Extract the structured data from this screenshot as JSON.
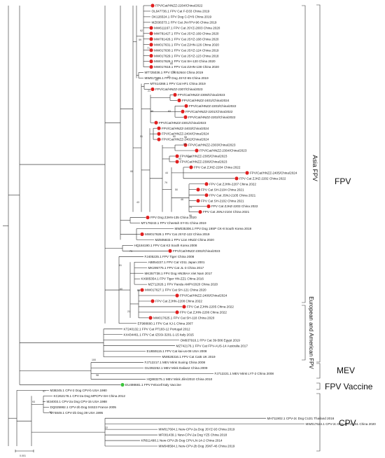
{
  "groups": {
    "fpv": "FPV",
    "asia_fpv": "Asia FPV",
    "euro_am_fpv": "European and American FPV",
    "mev": "MEV",
    "fpv_vaccine": "FPV Vaccine",
    "cpv": "CPV"
  },
  "scale_label": "0.001",
  "colors": {
    "red_marker": "#e02020",
    "green_marker": "#3cc43c",
    "line": "#1a1a1a"
  },
  "taxa": [
    {
      "label": "FPV/Cat/HNZZ-2204/China/2022",
      "mark": "red"
    },
    {
      "label": "OL647736.1 FPV Cat F-D33 China 2019",
      "mark": ""
    },
    {
      "label": "OK128324.1 FPV Dog C-DY6 China 2019",
      "mark": ""
    },
    {
      "label": "MZ836373.1 FPV Cat JN-FPV-96 China 2019",
      "mark": ""
    },
    {
      "label": "MW611167.1 FPV Cat JSYZ-2003 China 2020",
      "mark": "red"
    },
    {
      "label": "MW781427.1 FPV Cat JSYZ-169 China 2020",
      "mark": "red"
    },
    {
      "label": "MW781426.1 FPV Cat JSYZ-168 China 2020",
      "mark": "red"
    },
    {
      "label": "MW017631.1 FPV Cat ZJHN-126 China 2020",
      "mark": "red"
    },
    {
      "label": "MW017630.1 FPV Cat JSYZ-124 China 2019",
      "mark": "red"
    },
    {
      "label": "MW017629.1 FPV Cat JSYZ-123 China 2018",
      "mark": "red"
    },
    {
      "label": "MW017626.1 FPV Cat SH-120 China 2020",
      "mark": "red"
    },
    {
      "label": "MW017618.1 FPV Cat ZJHN-138 China 2020",
      "mark": "red"
    },
    {
      "label": "MT725036.1 FPV Cat BJ644 China 2019",
      "mark": ""
    },
    {
      "label": "MW017596.1 FPV Dog JSYZ-65 China 2019",
      "mark": ""
    },
    {
      "label": "MT614368.1 FPV Cat HF1 China 2019",
      "mark": ""
    },
    {
      "label": "FPV/Cat/HNZZ-2307/China/2023",
      "mark": "red"
    },
    {
      "label": "FPV/Cat/HNZZ-2308/China/2023",
      "mark": "red"
    },
    {
      "label": "FPV/Cat/HNZZ-2401/China/2024",
      "mark": "red"
    },
    {
      "label": "FPV/Cat/HNZZ-2203/China/2022",
      "mark": "red"
    },
    {
      "label": "FPV/Cat/HNZZ-2201/China/2022",
      "mark": "red"
    },
    {
      "label": "FPV/Cat/HNZZ-2202/China/2022",
      "mark": "red"
    },
    {
      "label": "FPV/Cat/HNZZ-2301/China/2023",
      "mark": "red"
    },
    {
      "label": "FPV/Cat/HNZZ-2403/China/2024",
      "mark": "red"
    },
    {
      "label": "FPV/Cat/HNZZ-2404/China/2024",
      "mark": "red"
    },
    {
      "label": "FPV/Cat/HNZZ-2402/China/2024",
      "mark": "red"
    },
    {
      "label": "FPV/Cat/HNZZ-2303/China/2023",
      "mark": "red"
    },
    {
      "label": "FPV/Cat/HNZZ-2304/China/2023",
      "mark": "red"
    },
    {
      "label": "FPV/Cat/HNZZ-2305/China/2023",
      "mark": "red"
    },
    {
      "label": "FPV/Cat/HNZZ-2306/China/2023",
      "mark": "red"
    },
    {
      "label": "FPV Cat ZJHZ-2204 China 2022",
      "mark": "red"
    },
    {
      "label": "FPV/Cat/HNZZ-2405/China/2024",
      "mark": "red"
    },
    {
      "label": "FPV Cat ZJHZ-2202 China 2022",
      "mark": "red"
    },
    {
      "label": "FPV Cat ZJHN-2207 China 2022",
      "mark": "red"
    },
    {
      "label": "FPV Cat SH-2104 China 2021",
      "mark": "red"
    },
    {
      "label": "FPV Cat JSNJ-2105 China 2021",
      "mark": "red"
    },
    {
      "label": "FPV Cat SH-2102 China 2021",
      "mark": "red"
    },
    {
      "label": "FPV Cat ZJHZ-2203 China 2022",
      "mark": "red"
    },
    {
      "label": "FPV Cat JSNJ-2104 China 2021",
      "mark": "red"
    },
    {
      "label": "FPV Dog ZJHN-135 China 2020",
      "mark": "red"
    },
    {
      "label": "MT178243.1 FPV Cheetah SY-01 China 2019",
      "mark": ""
    },
    {
      "label": "MW035306.1 FPV Dog 19SP CK-8 South Korea 2019",
      "mark": ""
    },
    {
      "label": "MW017628.1 FPV Cat JSYZ-122 China 2019",
      "mark": "red"
    },
    {
      "label": "MZ605833.1 FPV Lion HNZZ China 2020",
      "mark": ""
    },
    {
      "label": "HQ184190.1 FPV Cat K3 South Korea 2008",
      "mark": ""
    },
    {
      "label": "FPV/Cat/HNZZ-2302/China/2023",
      "mark": "red"
    },
    {
      "label": "FJ405225.1 FPV Tiger China 2008",
      "mark": ""
    },
    {
      "label": "AB054227.1 FPV Cat V211 Japan 2001",
      "mark": ""
    },
    {
      "label": "MK295775.1 FPV Cat JL-3 China 2017",
      "mark": ""
    },
    {
      "label": "MK357738.1 FPV Dog HN39AA Viet Nam 2017",
      "mark": ""
    },
    {
      "label": "KX685354.1 FPV Tiger HN-ZZ1 China 2016",
      "mark": ""
    },
    {
      "label": "MZ712026.1 FPV Panda AMPV2020 China 2020",
      "mark": ""
    },
    {
      "label": "MW017627.1 FPV Cat SH-121 China 2020",
      "mark": "red"
    },
    {
      "label": "FPV/Cat/HNZZ-2406/China/2024",
      "mark": "red"
    },
    {
      "label": "FPV Cat ZJHN-2208 China 2022",
      "mark": "red"
    },
    {
      "label": "FPV Cat ZJHN-2205 China 2022",
      "mark": "red"
    },
    {
      "label": "FPV Cat ZJHN-2206 China 2022",
      "mark": "red"
    },
    {
      "label": "MW017625.1 FPV Cat SH-118 China 2020",
      "mark": "red"
    },
    {
      "label": "EF988660.1 FPV Cat XJ-1 China 2007",
      "mark": ""
    },
    {
      "label": "KT240132.1 FPV Cat PT183-12 Portugal 2012",
      "mark": ""
    },
    {
      "label": "KX434461.1 FPV Cat IZSSI-3201-1-15 Italy 2015",
      "mark": ""
    },
    {
      "label": "OM937916.1 FPV Cat 39-586 Egypt 2019",
      "mark": ""
    },
    {
      "label": "MZ742176.1 FPV Cat FPV-AUS-14 Australia 2017",
      "mark": ""
    },
    {
      "label": "EU659115.1 FPV Cat kai-us-08 USA 2008",
      "mark": ""
    },
    {
      "label": "MW628316.1 FPV Cat Cat5 UK 2019",
      "mark": ""
    },
    {
      "label": "FJ712217.1 MEV Mink Suxing China 2008",
      "mark": ""
    },
    {
      "label": "GU392252.1 MEV Mink Dalian2 China 2009",
      "mark": ""
    },
    {
      "label": "FJ712221.1 MEV Mink LYT-2 China 2008",
      "mark": ""
    },
    {
      "label": "HQ883275.1 MEV Mink Jilin/2010 China 2010",
      "mark": ""
    },
    {
      "label": "EU498681.1 FPV Felocell Italy Vaccine",
      "mark": "green"
    },
    {
      "label": "M38245.1 CPV-2 Dog CPV-b USA 1980",
      "mark": ""
    },
    {
      "label": "KC262178.1 CPV-2a Dog MPCPV-SH China 2012",
      "mark": ""
    },
    {
      "label": "M24003.1 CPV-2a Dog CPV-15 USA 1988",
      "mark": ""
    },
    {
      "label": "DQ025982.1 CPV-2b Dog 04S23 France 2005",
      "mark": ""
    },
    {
      "label": "M74849.1 CPV-2b Dog 39 USA 1995",
      "mark": ""
    },
    {
      "label": "MH711902.1 CPV-2c Dog CU21 Thailand 2016",
      "mark": ""
    },
    {
      "label": "MW017624.1 CPV-2c Dog JSYZ-151 China 2020",
      "mark": ""
    },
    {
      "label": "MW017604.1 New-CPV-2a Dog JSYZ-93 China 2019",
      "mark": ""
    },
    {
      "label": "MF001439.1 New-CPV-2a Dog YZ5 China 2018",
      "mark": ""
    },
    {
      "label": "KR611498.1 New-CPV-2b Dog CPV-LN-14-2 China 2014",
      "mark": ""
    },
    {
      "label": "MW048584.1 New-CPV-2b Dog JSNT-46 China 2019",
      "mark": ""
    }
  ],
  "bootstrap": [
    "92",
    "59",
    "71",
    "85",
    "78",
    "73",
    "63",
    "21",
    "89",
    "83",
    "60",
    "98",
    "95",
    "90",
    "93",
    "44",
    "79",
    "50",
    "46",
    "75",
    "96",
    "95",
    "51",
    "43",
    "75",
    "61",
    "60",
    "55",
    "21",
    "100",
    "98",
    "97",
    "93",
    "92",
    "22"
  ]
}
